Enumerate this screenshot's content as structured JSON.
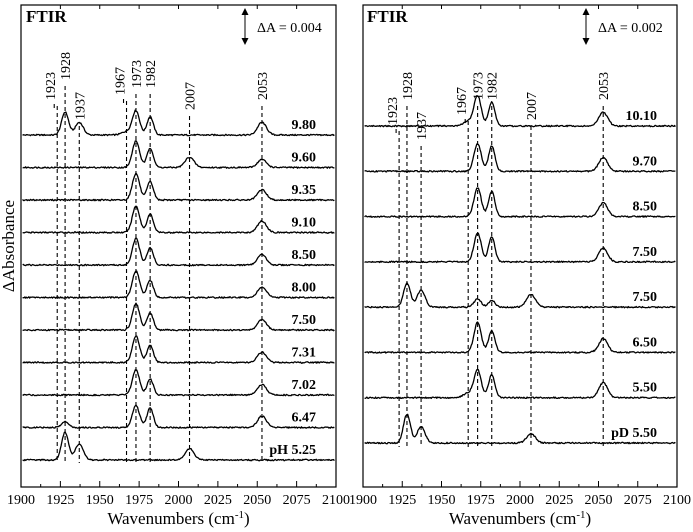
{
  "chart_data": [
    {
      "type": "line",
      "title": "FTIR",
      "xlabel": "Wavenumbers (cm⁻¹)",
      "ylabel": "ΔAbsorbance",
      "xlim": [
        1900,
        2100
      ],
      "xticks": [
        1900,
        1925,
        1950,
        1975,
        2000,
        2025,
        2050,
        2075,
        2100
      ],
      "scale_bar": "ΔA = 0.004",
      "peak_labels": [
        1923,
        1928,
        1937,
        1967,
        1973,
        1982,
        2007,
        2053
      ],
      "series": [
        {
          "name": "9.80",
          "peaks": [
            [
              1928,
              1.0
            ],
            [
              1937,
              0.55
            ],
            [
              1967,
              0.15
            ],
            [
              1973,
              1.05
            ],
            [
              1982,
              0.8
            ],
            [
              2053,
              0.55
            ]
          ]
        },
        {
          "name": "9.60",
          "peaks": [
            [
              1973,
              1.15
            ],
            [
              1982,
              0.85
            ],
            [
              2007,
              0.45
            ],
            [
              2053,
              0.35
            ]
          ]
        },
        {
          "name": "9.35",
          "peaks": [
            [
              1973,
              1.15
            ],
            [
              1982,
              0.8
            ],
            [
              2053,
              0.45
            ]
          ]
        },
        {
          "name": "9.10",
          "peaks": [
            [
              1973,
              1.15
            ],
            [
              1982,
              0.8
            ],
            [
              2053,
              0.5
            ]
          ]
        },
        {
          "name": "8.50",
          "peaks": [
            [
              1973,
              1.15
            ],
            [
              1982,
              0.75
            ],
            [
              2053,
              0.45
            ]
          ]
        },
        {
          "name": "8.00",
          "peaks": [
            [
              1973,
              1.15
            ],
            [
              1982,
              0.75
            ],
            [
              2053,
              0.45
            ]
          ]
        },
        {
          "name": "7.50",
          "peaks": [
            [
              1973,
              1.15
            ],
            [
              1982,
              0.75
            ],
            [
              2053,
              0.45
            ]
          ]
        },
        {
          "name": "7.31",
          "peaks": [
            [
              1973,
              1.15
            ],
            [
              1982,
              0.75
            ],
            [
              2053,
              0.45
            ]
          ]
        },
        {
          "name": "7.02",
          "peaks": [
            [
              1973,
              1.1
            ],
            [
              1982,
              0.7
            ],
            [
              2053,
              0.45
            ]
          ]
        },
        {
          "name": "6.47",
          "peaks": [
            [
              1928,
              0.25
            ],
            [
              1973,
              0.95
            ],
            [
              1982,
              0.85
            ],
            [
              2053,
              0.5
            ]
          ]
        },
        {
          "name": "pH 5.25",
          "peaks": [
            [
              1928,
              1.2
            ],
            [
              1937,
              0.7
            ],
            [
              2007,
              0.5
            ]
          ]
        }
      ]
    },
    {
      "type": "line",
      "title": "FTIR",
      "xlabel": "Wavenumbers (cm⁻¹)",
      "ylabel": "",
      "xlim": [
        1900,
        2100
      ],
      "xticks": [
        1900,
        1925,
        1950,
        1975,
        2000,
        2025,
        2050,
        2075,
        2100
      ],
      "scale_bar": "ΔA = 0.002",
      "peak_labels": [
        1923,
        1928,
        1937,
        1967,
        1973,
        1982,
        2007,
        2053
      ],
      "series": [
        {
          "name": "10.10",
          "peaks": [
            [
              1967,
              0.2
            ],
            [
              1973,
              1.3
            ],
            [
              1982,
              1.05
            ],
            [
              2053,
              0.6
            ]
          ]
        },
        {
          "name": "9.70",
          "peaks": [
            [
              1973,
              1.2
            ],
            [
              1982,
              1.1
            ],
            [
              2053,
              0.6
            ]
          ]
        },
        {
          "name": "8.50",
          "peaks": [
            [
              1973,
              1.25
            ],
            [
              1982,
              1.1
            ],
            [
              2053,
              0.6
            ]
          ]
        },
        {
          "name": "7.50",
          "peaks": [
            [
              1973,
              1.25
            ],
            [
              1982,
              1.1
            ],
            [
              2053,
              0.6
            ]
          ]
        },
        {
          "name": "7.50",
          "peaks": [
            [
              1928,
              1.05
            ],
            [
              1937,
              0.75
            ],
            [
              1973,
              0.35
            ],
            [
              1982,
              0.3
            ],
            [
              2007,
              0.55
            ]
          ]
        },
        {
          "name": "6.50",
          "peaks": [
            [
              1973,
              1.3
            ],
            [
              1982,
              0.95
            ],
            [
              2053,
              0.6
            ]
          ]
        },
        {
          "name": "5.50",
          "peaks": [
            [
              1967,
              0.2
            ],
            [
              1973,
              1.2
            ],
            [
              1982,
              1.0
            ],
            [
              2053,
              0.65
            ]
          ]
        },
        {
          "name": "pD 5.50",
          "peaks": [
            [
              1928,
              1.25
            ],
            [
              1937,
              0.7
            ],
            [
              2007,
              0.4
            ]
          ]
        }
      ]
    }
  ]
}
